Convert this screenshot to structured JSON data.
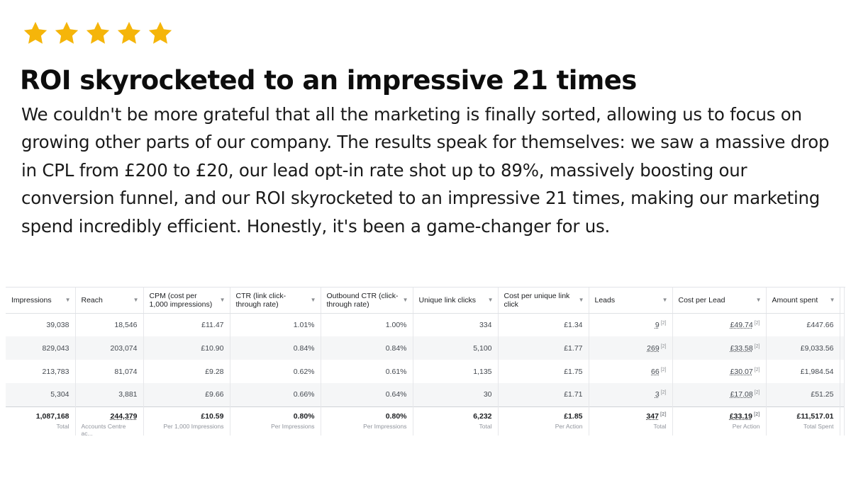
{
  "rating": {
    "stars": 5,
    "color": "#F5B50A",
    "icon": "star-icon"
  },
  "headline": "ROI skyrocketed to an impressive 21 times",
  "body": "We couldn't be more grateful that all the marketing is finally sorted, allowing us to focus on growing other parts of our company. The results speak for themselves: we saw a massive drop in CPL from £200 to £20, our lead opt-in rate shot up to 89%, massively boosting our conversion funnel, and our ROI skyrocketed to an impressive 21 times, making our marketing spend incredibly efficient. Honestly, it's been a game-changer for us.",
  "table": {
    "columns": [
      "Impressions",
      "Reach",
      "CPM (cost per 1,000 impressions)",
      "CTR (link click-through rate)",
      "Outbound CTR (click-through rate)",
      "Unique link clicks",
      "Cost per unique link click",
      "Leads",
      "Cost per Lead",
      "Amount spent"
    ],
    "rows": [
      [
        "39,038",
        "18,546",
        "£11.47",
        "1.01%",
        "1.00%",
        "334",
        "£1.34",
        "9",
        "£49.74",
        "£447.66"
      ],
      [
        "829,043",
        "203,074",
        "£10.90",
        "0.84%",
        "0.84%",
        "5,100",
        "£1.77",
        "269",
        "£33.58",
        "£9,033.56"
      ],
      [
        "213,783",
        "81,074",
        "£9.28",
        "0.62%",
        "0.61%",
        "1,135",
        "£1.75",
        "66",
        "£30.07",
        "£1,984.54"
      ],
      [
        "5,304",
        "3,881",
        "£9.66",
        "0.66%",
        "0.64%",
        "30",
        "£1.71",
        "3",
        "£17.08",
        "£51.25"
      ]
    ],
    "info_mark": "[2]",
    "totals": [
      {
        "value": "1,087,168",
        "label": "Total"
      },
      {
        "value": "244,379",
        "label": "Accounts Centre ac..."
      },
      {
        "value": "£10.59",
        "label": "Per 1,000 Impressions"
      },
      {
        "value": "0.80%",
        "label": "Per Impressions"
      },
      {
        "value": "0.80%",
        "label": "Per Impressions"
      },
      {
        "value": "6,232",
        "label": "Total"
      },
      {
        "value": "£1.85",
        "label": "Per Action"
      },
      {
        "value": "347",
        "label": "Total"
      },
      {
        "value": "£33.19",
        "label": "Per Action"
      },
      {
        "value": "£11,517.01",
        "label": "Total Spent"
      }
    ]
  }
}
